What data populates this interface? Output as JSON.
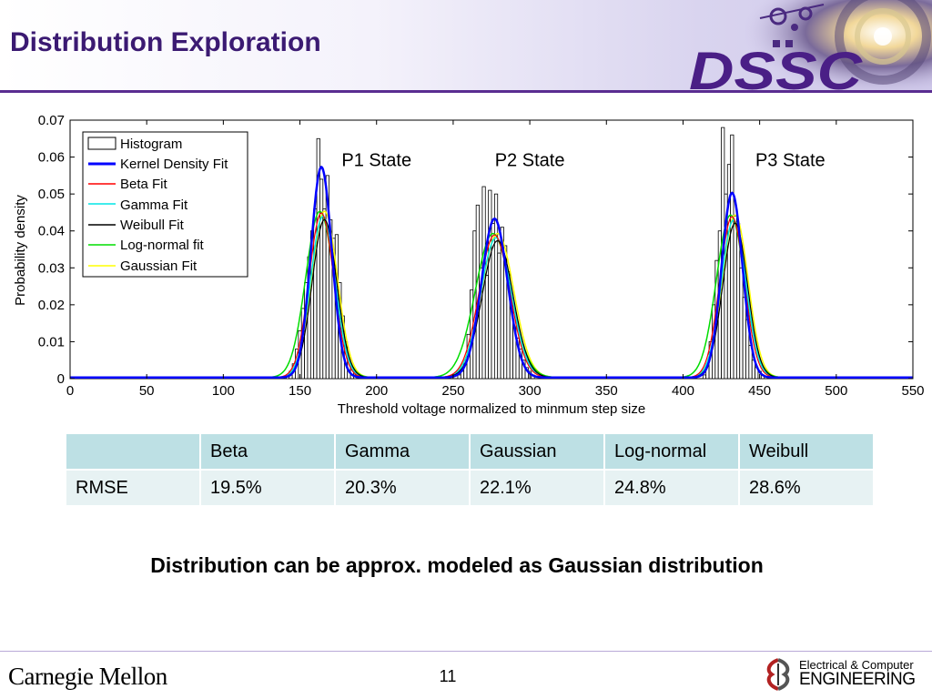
{
  "slide": {
    "title": "Distribution Exploration",
    "logo_text": "DSSC",
    "conclusion": "Distribution can be approx. modeled as Gaussian distribution",
    "footer_left": "Carnegie Mellon",
    "page_number": "11",
    "footer_right_line1": "Electrical & Computer",
    "footer_right_line2": "ENGINEERING"
  },
  "colors": {
    "title": "#3b1a72",
    "accent": "#5a2d91",
    "table_header": "#bde0e4",
    "table_body": "#e7f2f3",
    "kernel": "#0000ff",
    "beta": "#ff0000",
    "gamma": "#00e5e5",
    "weibull": "#000000",
    "lognormal": "#00dd00",
    "gaussian": "#ffff00"
  },
  "table": {
    "columns": [
      "",
      "Beta",
      "Gamma",
      "Gaussian",
      "Log-normal",
      "Weibull"
    ],
    "row_label": "RMSE",
    "values": [
      "19.5%",
      "20.3%",
      "22.1%",
      "24.8%",
      "28.6%"
    ]
  },
  "chart_data": {
    "type": "line",
    "xlabel": "Threshold voltage normalized to minmum step size",
    "ylabel": "Probability density",
    "xlim": [
      0,
      550
    ],
    "ylim": [
      0,
      0.07
    ],
    "xticks": [
      "0",
      "50",
      "100",
      "150",
      "200",
      "250",
      "300",
      "350",
      "400",
      "450",
      "500",
      "550"
    ],
    "yticks": [
      "0",
      "0.01",
      "0.02",
      "0.03",
      "0.04",
      "0.05",
      "0.06",
      "0.07"
    ],
    "grid": false,
    "legend_position": "top-left",
    "legend": [
      "Histogram",
      "Kernel Density Fit",
      "Beta Fit",
      "Gamma Fit",
      "Weibull Fit",
      "Log-normal fit",
      "Gaussian Fit"
    ],
    "annotations": [
      {
        "text": "P1 State",
        "x": 200,
        "y": 0.0575
      },
      {
        "text": "P2 State",
        "x": 300,
        "y": 0.0575
      },
      {
        "text": "P3 State",
        "x": 470,
        "y": 0.0575
      }
    ],
    "peaks": [
      {
        "center": 164,
        "width": 8,
        "kernel_peak": 0.057,
        "fit_peak": 0.045
      },
      {
        "center": 277,
        "width": 10,
        "kernel_peak": 0.043,
        "fit_peak": 0.039
      },
      {
        "center": 432,
        "width": 8,
        "kernel_peak": 0.05,
        "fit_peak": 0.044
      }
    ],
    "histogram": {
      "x": [
        142,
        144,
        146,
        148,
        150,
        152,
        154,
        156,
        158,
        160,
        162,
        164,
        166,
        168,
        170,
        172,
        174,
        176,
        178,
        180,
        182,
        184,
        186,
        254,
        256,
        258,
        260,
        262,
        264,
        266,
        268,
        270,
        272,
        274,
        276,
        278,
        280,
        282,
        284,
        286,
        288,
        290,
        292,
        294,
        296,
        298,
        300,
        302,
        414,
        416,
        418,
        420,
        422,
        424,
        426,
        428,
        430,
        432,
        434,
        436,
        438,
        440,
        442,
        444,
        446,
        448,
        450,
        452
      ],
      "y": [
        0.001,
        0.002,
        0.004,
        0.008,
        0.013,
        0.019,
        0.026,
        0.033,
        0.04,
        0.046,
        0.065,
        0.054,
        0.046,
        0.055,
        0.043,
        0.038,
        0.039,
        0.026,
        0.017,
        0.01,
        0.005,
        0.003,
        0.001,
        0.001,
        0.002,
        0.005,
        0.012,
        0.024,
        0.04,
        0.047,
        0.03,
        0.052,
        0.028,
        0.051,
        0.042,
        0.05,
        0.034,
        0.041,
        0.036,
        0.029,
        0.022,
        0.018,
        0.011,
        0.008,
        0.005,
        0.003,
        0.002,
        0.001,
        0.001,
        0.004,
        0.01,
        0.02,
        0.032,
        0.04,
        0.068,
        0.05,
        0.058,
        0.066,
        0.044,
        0.042,
        0.03,
        0.022,
        0.016,
        0.009,
        0.005,
        0.003,
        0.002,
        0.001
      ]
    }
  }
}
